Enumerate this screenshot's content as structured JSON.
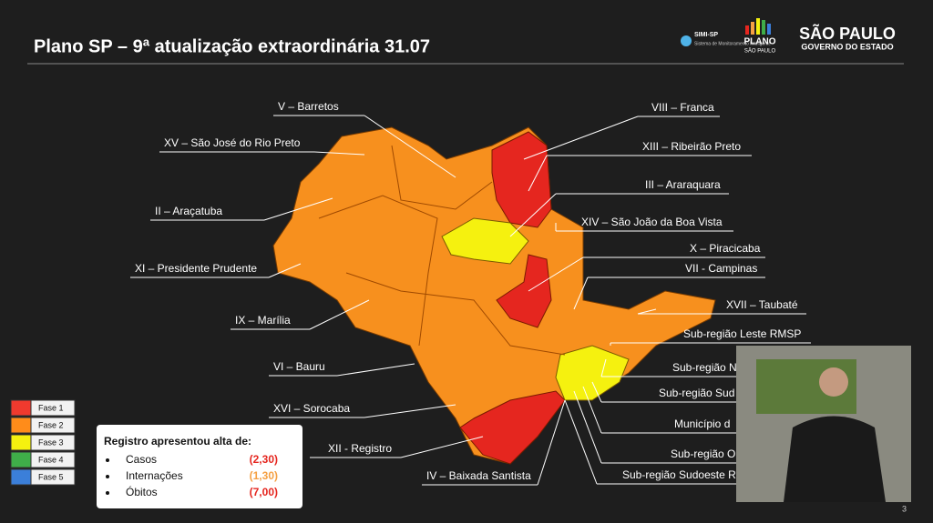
{
  "header": {
    "title": "Plano SP – 9ª atualização extraordinária 31.07",
    "logos": {
      "simi": "SIMI-SP",
      "simi_sub": "Sistema de Monitoramento Inteligente",
      "plano": "PLANO",
      "plano_sub": "SÃO PAULO",
      "gov": "SÃO PAULO",
      "gov_sub": "GOVERNO DO ESTADO"
    }
  },
  "map": {
    "labels": [
      "V – Barretos",
      "XV – São José do Rio Preto",
      "II – Araçatuba",
      "XI – Presidente Prudente",
      "IX – Marília",
      "VI – Bauru",
      "XVI – Sorocaba",
      "XII - Registro",
      "IV – Baixada Santista",
      "VIII – Franca",
      "XIII – Ribeirão Preto",
      "III – Araraquara",
      "XIV – São João da Boa Vista",
      "X – Piracicaba",
      "VII - Campinas",
      "XVII – Taubaté",
      "Sub-região Leste RMSP",
      "Sub-região N",
      "Sub-região Sud",
      "Município d",
      "Sub-região O",
      "Sub-região Sudoeste R"
    ]
  },
  "legend": [
    {
      "label": "Fase 1",
      "color": "#f03a2e"
    },
    {
      "label": "Fase 2",
      "color": "#ff8c1a"
    },
    {
      "label": "Fase 3",
      "color": "#f5f10f"
    },
    {
      "label": "Fase 4",
      "color": "#3fae49"
    },
    {
      "label": "Fase 5",
      "color": "#3b7fd9"
    }
  ],
  "note": {
    "title": "Registro apresentou alta de:",
    "items": [
      {
        "label": "Casos",
        "value": "(2,30)",
        "color": "#e5261f"
      },
      {
        "label": "Internações",
        "value": "(1,30)",
        "color": "#f5a043"
      },
      {
        "label": "Óbitos",
        "value": "(7,00)",
        "color": "#e5261f"
      }
    ]
  },
  "page_number": "3"
}
